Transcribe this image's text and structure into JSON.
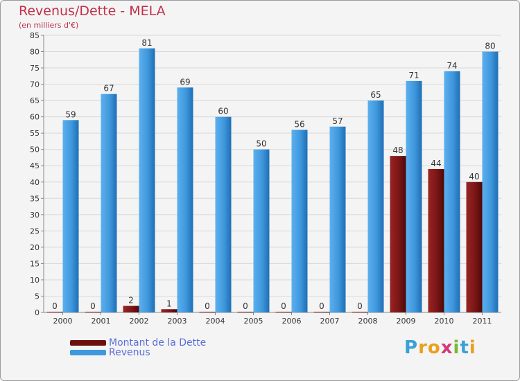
{
  "header": {
    "title": "Revenus/Dette - MELA",
    "subtitle": "(en milliers d'€)"
  },
  "colors": {
    "dette": "#7a1616",
    "revenus": "#3f97dc",
    "axis_text": "#333333",
    "title": "#c0304a",
    "legend_text": "#5a6ed8"
  },
  "chart_data": {
    "type": "bar",
    "categories": [
      "2000",
      "2001",
      "2002",
      "2003",
      "2004",
      "2005",
      "2006",
      "2007",
      "2008",
      "2009",
      "2010",
      "2011"
    ],
    "series": [
      {
        "name": "Montant de la Dette",
        "values": [
          0,
          0,
          2,
          1,
          0,
          0,
          0,
          0,
          0,
          48,
          44,
          40
        ]
      },
      {
        "name": "Revenus",
        "values": [
          59,
          67,
          81,
          69,
          60,
          50,
          56,
          57,
          65,
          71,
          74,
          80
        ]
      }
    ],
    "ylim": [
      0,
      85
    ],
    "ytick_step": 5,
    "grid": true,
    "legend_position": "bottom-left"
  },
  "legend": {
    "dette_label": "Montant de la Dette",
    "revenus_label": "Revenus"
  },
  "logo": {
    "letters": [
      "P",
      "r",
      "o",
      "x",
      "i",
      "t",
      "i"
    ],
    "colors": [
      "#3aa0d8",
      "#e8a020",
      "#e8a020",
      "#d23a7a",
      "#7ab830",
      "#3aa0d8",
      "#e8a020"
    ]
  }
}
